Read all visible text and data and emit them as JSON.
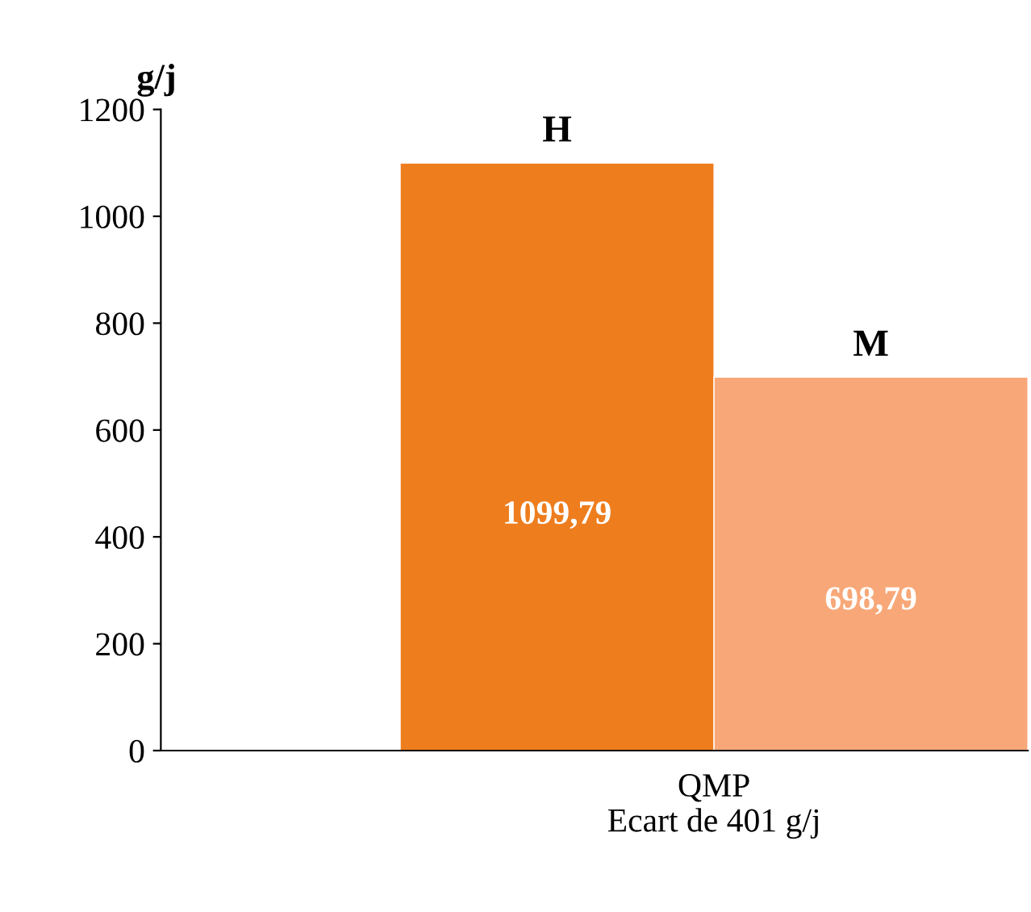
{
  "chart_data": {
    "type": "bar",
    "ylabel": "g/j",
    "categories": [
      "QMP\nEcart de 401 g/j"
    ],
    "series": [
      {
        "name": "H",
        "color": "#ee7d1e",
        "values": [
          1099.79
        ],
        "value_labels": [
          "1099,79"
        ]
      },
      {
        "name": "M",
        "color": "#f8a878",
        "values": [
          698.79
        ],
        "value_labels": [
          "698,79"
        ]
      }
    ],
    "ylim": [
      0,
      1200
    ],
    "yticks": [
      0,
      200,
      400,
      600,
      800,
      1000,
      1200
    ],
    "grid": false,
    "legend": false
  }
}
